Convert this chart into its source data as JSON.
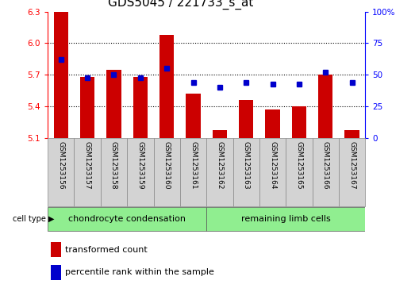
{
  "title": "GDS5045 / 221733_s_at",
  "samples": [
    "GSM1253156",
    "GSM1253157",
    "GSM1253158",
    "GSM1253159",
    "GSM1253160",
    "GSM1253161",
    "GSM1253162",
    "GSM1253163",
    "GSM1253164",
    "GSM1253165",
    "GSM1253166",
    "GSM1253167"
  ],
  "transformed_count": [
    6.3,
    5.68,
    5.75,
    5.68,
    6.08,
    5.52,
    5.18,
    5.46,
    5.37,
    5.4,
    5.7,
    5.18
  ],
  "percentile_rank": [
    62,
    48,
    50,
    48,
    55,
    44,
    40,
    44,
    43,
    43,
    52,
    44
  ],
  "ylim_left": [
    5.1,
    6.3
  ],
  "ylim_right": [
    0,
    100
  ],
  "yticks_left": [
    5.1,
    5.4,
    5.7,
    6.0,
    6.3
  ],
  "yticks_right": [
    0,
    25,
    50,
    75,
    100
  ],
  "bar_color": "#cc0000",
  "dot_color": "#0000cc",
  "bar_bottom": 5.1,
  "grid_lines": [
    5.4,
    5.7,
    6.0
  ],
  "title_fontsize": 11,
  "tick_fontsize": 7.5,
  "label_fontsize": 6.5,
  "legend_fontsize": 8,
  "celltype_fontsize": 8,
  "chondro_label": "chondrocyte condensation",
  "limb_label": "remaining limb cells",
  "cell_type_label": "cell type",
  "legend_bar_label": "transformed count",
  "legend_dot_label": "percentile rank within the sample",
  "green_color": "#90ee90",
  "gray_color": "#d3d3d3"
}
